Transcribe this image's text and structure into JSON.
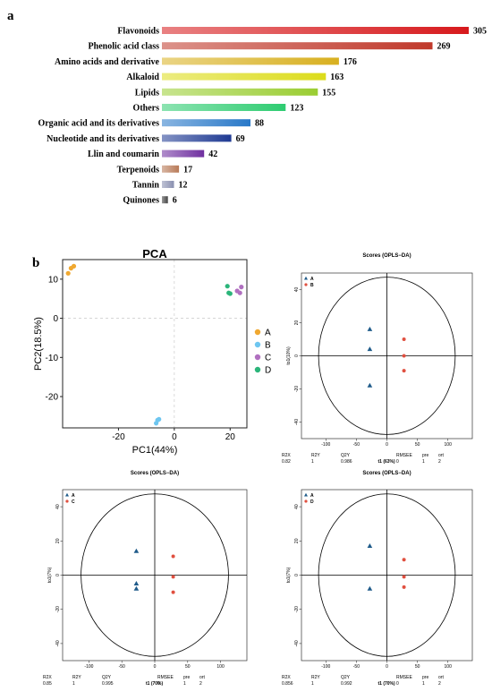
{
  "panel_labels": {
    "a": "a",
    "b": "b"
  },
  "chart_data": [
    {
      "type": "bar",
      "orientation": "horizontal",
      "categories": [
        "Flavonoids",
        "Phenolic acid class",
        "Amino acids and derivative",
        "Alkaloid",
        "Lipids",
        "Others",
        "Organic acid and its derivatives",
        "Nucleotide and its derivatives",
        "Llin and coumarin",
        "Terpenoids",
        "Tannin",
        "Quinones"
      ],
      "values": [
        305,
        269,
        176,
        163,
        155,
        123,
        88,
        69,
        42,
        17,
        12,
        6
      ],
      "colors": [
        "#d7191c",
        "#c0392b",
        "#d8b020",
        "#dcdc1a",
        "#9acd32",
        "#2ecc71",
        "#2878c8",
        "#1f3a93",
        "#7030a0",
        "#b87a58",
        "#8a90b0",
        "#444444"
      ]
    },
    {
      "type": "scatter",
      "title": "PCA",
      "xlabel": "PC1(44%)",
      "ylabel": "PC2(18.5%)",
      "xlim": [
        -40,
        26
      ],
      "ylim": [
        -28,
        15
      ],
      "xticks": [
        "-20",
        "0",
        "20"
      ],
      "yticks": [
        "10",
        "0",
        "-10",
        "-20"
      ],
      "legend_position": "right",
      "series": [
        {
          "name": "A",
          "color": "#f0a830",
          "points": [
            [
              -38,
              11.5
            ],
            [
              -37,
              12.8
            ],
            [
              -36,
              13.3
            ]
          ]
        },
        {
          "name": "B",
          "color": "#6ec6f0",
          "points": [
            [
              -6.5,
              -26.8
            ],
            [
              -6,
              -26
            ],
            [
              -5.5,
              -25.8
            ]
          ]
        },
        {
          "name": "C",
          "color": "#b070c0",
          "points": [
            [
              22.5,
              7
            ],
            [
              23.5,
              6.5
            ],
            [
              24,
              8
            ]
          ]
        },
        {
          "name": "D",
          "color": "#2bb57a",
          "points": [
            [
              19,
              8.2
            ],
            [
              19.5,
              6.5
            ],
            [
              20,
              6.3
            ]
          ]
        }
      ]
    },
    {
      "type": "scatter",
      "title": "Scores (OPLS−DA)",
      "xlabel": "t1 (63%)",
      "ylabel": "to1(10%)",
      "xlim": [
        -140,
        140
      ],
      "ylim": [
        -50,
        50
      ],
      "xticks": [
        "-100",
        "-50",
        "0",
        "50",
        "100"
      ],
      "yticks": [
        "40",
        "20",
        "0",
        "-20",
        "-40"
      ],
      "series": [
        {
          "name": "A",
          "marker": "triangle",
          "color": "#1f5b8a",
          "points": [
            [
              -28,
              16
            ],
            [
              -28,
              4
            ],
            [
              -28,
              -18
            ]
          ]
        },
        {
          "name": "B",
          "marker": "circle",
          "color": "#e05040",
          "points": [
            [
              28,
              10
            ],
            [
              28,
              0
            ],
            [
              28,
              -9
            ]
          ]
        }
      ],
      "stats": {
        "headers": [
          "R2X",
          "R2Y",
          "Q2Y",
          "RMSEE",
          "pre",
          "ort"
        ],
        "values": [
          "0.82",
          "1",
          "0.986",
          "0",
          "1",
          "2"
        ]
      }
    },
    {
      "type": "scatter",
      "title": "Scores (OPLS−DA)",
      "xlabel": "t1 (70%)",
      "ylabel": "to1(7%)",
      "xlim": [
        -140,
        140
      ],
      "ylim": [
        -50,
        50
      ],
      "xticks": [
        "-100",
        "-50",
        "0",
        "50",
        "100"
      ],
      "yticks": [
        "40",
        "20",
        "0",
        "-20",
        "-40"
      ],
      "series": [
        {
          "name": "A",
          "marker": "triangle",
          "color": "#1f5b8a",
          "points": [
            [
              -28,
              14
            ],
            [
              -28,
              -5
            ],
            [
              -28,
              -8
            ]
          ]
        },
        {
          "name": "C",
          "marker": "circle",
          "color": "#e05040",
          "points": [
            [
              28,
              11
            ],
            [
              28,
              -1
            ],
            [
              28,
              -10
            ]
          ]
        }
      ],
      "stats": {
        "headers": [
          "R2X",
          "R2Y",
          "Q2Y",
          "RMSEE",
          "pre",
          "ort"
        ],
        "values": [
          "0.85",
          "1",
          "0.995",
          "0",
          "1",
          "2"
        ]
      }
    },
    {
      "type": "scatter",
      "title": "Scores (OPLS−DA)",
      "xlabel": "t1 (70%)",
      "ylabel": "to1(7%)",
      "xlim": [
        -140,
        140
      ],
      "ylim": [
        -50,
        50
      ],
      "xticks": [
        "-100",
        "-50",
        "0",
        "50",
        "100"
      ],
      "yticks": [
        "40",
        "20",
        "0",
        "-20",
        "-40"
      ],
      "series": [
        {
          "name": "A",
          "marker": "triangle",
          "color": "#1f5b8a",
          "points": [
            [
              -28,
              17
            ],
            [
              -28,
              -8
            ]
          ]
        },
        {
          "name": "D",
          "marker": "circle",
          "color": "#e05040",
          "points": [
            [
              28,
              9
            ],
            [
              28,
              -1
            ],
            [
              28,
              -7
            ]
          ]
        }
      ],
      "stats": {
        "headers": [
          "R2X",
          "R2Y",
          "Q2Y",
          "RMSEE",
          "pre",
          "ort"
        ],
        "values": [
          "0.856",
          "1",
          "0.992",
          "0",
          "1",
          "2"
        ]
      }
    }
  ]
}
